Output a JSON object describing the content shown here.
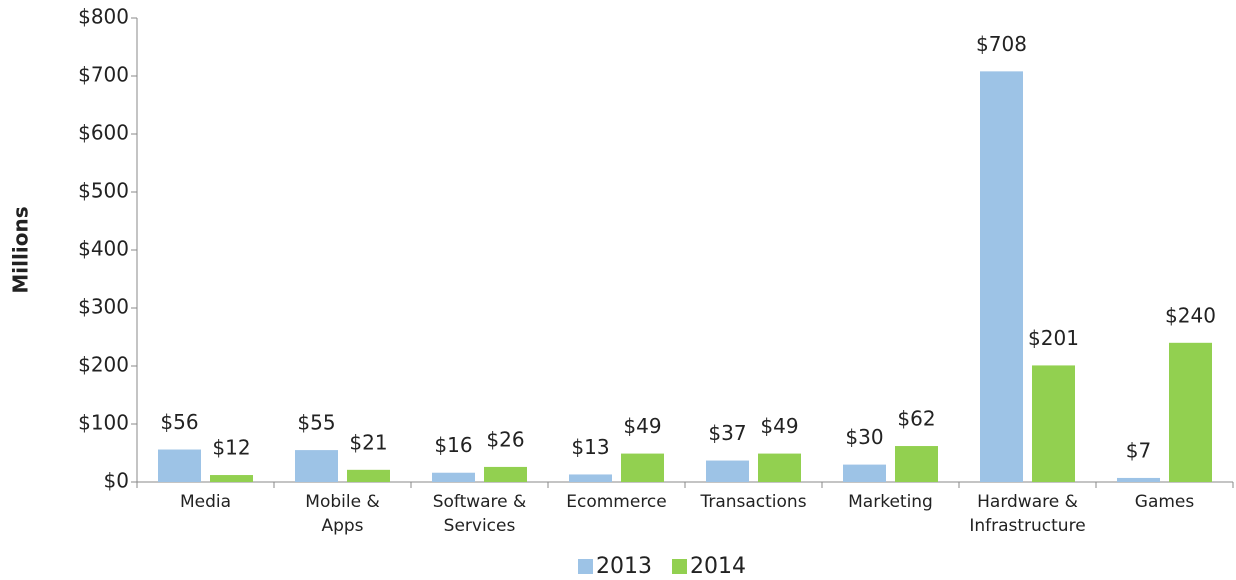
{
  "chart_data": {
    "type": "bar",
    "y_label": "Millions",
    "categories": [
      "Media",
      "Mobile & Apps",
      "Software & Services",
      "Ecommerce",
      "Transactions",
      "Marketing",
      "Hardware & Infrastructure",
      "Games"
    ],
    "series": [
      {
        "name": "2013",
        "color": "#9dc3e6",
        "values": [
          56,
          55,
          16,
          13,
          37,
          30,
          708,
          7
        ],
        "value_labels": [
          "$56",
          "$55",
          "$16",
          "$13",
          "$37",
          "$30",
          "$708",
          "$7"
        ]
      },
      {
        "name": "2014",
        "color": "#92d050",
        "values": [
          12,
          21,
          26,
          49,
          49,
          62,
          201,
          240
        ],
        "value_labels": [
          "$12",
          "$21",
          "$26",
          "$49",
          "$49",
          "$62",
          "$201",
          "$240"
        ]
      }
    ],
    "ylim": [
      0,
      800
    ],
    "yticks": [
      {
        "value": 0,
        "label": "$0"
      },
      {
        "value": 100,
        "label": "$100"
      },
      {
        "value": 200,
        "label": "$200"
      },
      {
        "value": 300,
        "label": "$300"
      },
      {
        "value": 400,
        "label": "$400"
      },
      {
        "value": 500,
        "label": "$500"
      },
      {
        "value": 600,
        "label": "$600"
      },
      {
        "value": 700,
        "label": "$700"
      },
      {
        "value": 800,
        "label": "$800"
      }
    ],
    "legend": "bottom"
  }
}
